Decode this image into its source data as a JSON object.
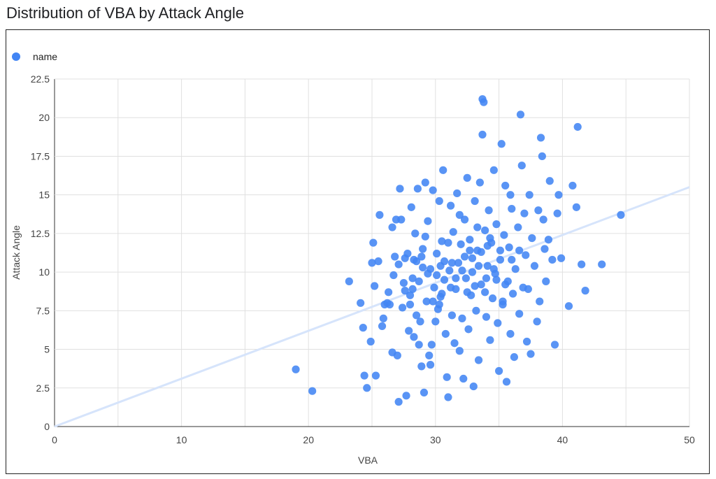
{
  "title": "Distribution of VBA by Attack Angle",
  "chart_data": {
    "type": "scatter",
    "title": "Distribution of VBA by Attack Angle",
    "xlabel": "VBA",
    "ylabel": "Attack Angle",
    "xlim": [
      0,
      50
    ],
    "ylim": [
      0,
      22.5
    ],
    "x_ticks": [
      "0",
      "10",
      "20",
      "30",
      "40",
      "50"
    ],
    "y_ticks": [
      "0",
      "2.5",
      "5",
      "7.5",
      "10",
      "12.5",
      "15",
      "17.5",
      "20",
      "22.5"
    ],
    "grid": true,
    "legend_position": "top-left",
    "series": [
      {
        "name": "name",
        "color": "#4285f4",
        "points": [
          [
            19.0,
            3.7
          ],
          [
            20.3,
            2.3
          ],
          [
            23.2,
            9.4
          ],
          [
            24.1,
            8.0
          ],
          [
            24.3,
            6.4
          ],
          [
            24.4,
            3.3
          ],
          [
            24.6,
            2.5
          ],
          [
            24.9,
            5.5
          ],
          [
            25.0,
            10.6
          ],
          [
            25.1,
            11.9
          ],
          [
            25.2,
            9.1
          ],
          [
            25.3,
            3.3
          ],
          [
            25.5,
            10.7
          ],
          [
            25.6,
            13.7
          ],
          [
            25.8,
            6.5
          ],
          [
            26.0,
            7.9
          ],
          [
            26.2,
            8.0
          ],
          [
            26.4,
            7.9
          ],
          [
            26.6,
            12.9
          ],
          [
            26.6,
            4.8
          ],
          [
            26.7,
            9.8
          ],
          [
            26.8,
            11.0
          ],
          [
            26.9,
            13.4
          ],
          [
            27.0,
            4.6
          ],
          [
            27.1,
            1.6
          ],
          [
            27.2,
            15.4
          ],
          [
            27.3,
            13.4
          ],
          [
            27.5,
            9.3
          ],
          [
            27.6,
            10.9
          ],
          [
            27.7,
            2.0
          ],
          [
            27.8,
            11.2
          ],
          [
            27.9,
            6.2
          ],
          [
            28.0,
            7.9
          ],
          [
            28.1,
            14.2
          ],
          [
            28.2,
            8.9
          ],
          [
            28.3,
            5.8
          ],
          [
            28.4,
            12.5
          ],
          [
            28.5,
            10.7
          ],
          [
            28.6,
            15.4
          ],
          [
            28.7,
            5.3
          ],
          [
            28.8,
            6.8
          ],
          [
            28.9,
            3.9
          ],
          [
            29.0,
            11.5
          ],
          [
            29.1,
            2.2
          ],
          [
            29.2,
            15.8
          ],
          [
            29.3,
            8.1
          ],
          [
            29.4,
            13.3
          ],
          [
            29.5,
            4.6
          ],
          [
            29.6,
            10.2
          ],
          [
            29.7,
            5.3
          ],
          [
            29.8,
            15.3
          ],
          [
            29.9,
            9.0
          ],
          [
            30.0,
            6.8
          ],
          [
            30.1,
            11.2
          ],
          [
            30.2,
            7.6
          ],
          [
            30.3,
            14.6
          ],
          [
            30.4,
            8.4
          ],
          [
            30.5,
            12.0
          ],
          [
            30.6,
            16.6
          ],
          [
            30.7,
            9.5
          ],
          [
            30.8,
            6.0
          ],
          [
            30.9,
            3.2
          ],
          [
            31.0,
            1.9
          ],
          [
            31.1,
            10.1
          ],
          [
            31.2,
            14.3
          ],
          [
            31.3,
            7.2
          ],
          [
            31.4,
            12.6
          ],
          [
            31.5,
            5.4
          ],
          [
            31.6,
            8.9
          ],
          [
            31.7,
            15.1
          ],
          [
            31.8,
            10.6
          ],
          [
            31.9,
            4.9
          ],
          [
            32.0,
            11.8
          ],
          [
            32.1,
            7.0
          ],
          [
            32.2,
            3.1
          ],
          [
            32.3,
            13.4
          ],
          [
            32.4,
            9.6
          ],
          [
            32.5,
            16.1
          ],
          [
            32.6,
            6.3
          ],
          [
            32.7,
            12.1
          ],
          [
            32.8,
            8.5
          ],
          [
            32.9,
            10.9
          ],
          [
            33.0,
            2.6
          ],
          [
            33.1,
            14.6
          ],
          [
            33.2,
            7.5
          ],
          [
            33.3,
            11.4
          ],
          [
            33.4,
            4.3
          ],
          [
            33.5,
            15.8
          ],
          [
            33.6,
            9.2
          ],
          [
            33.7,
            18.9
          ],
          [
            33.7,
            21.2
          ],
          [
            33.8,
            21.0
          ],
          [
            33.9,
            12.7
          ],
          [
            34.0,
            7.1
          ],
          [
            34.1,
            10.4
          ],
          [
            34.2,
            14.0
          ],
          [
            34.3,
            5.6
          ],
          [
            34.4,
            11.9
          ],
          [
            34.5,
            8.3
          ],
          [
            34.6,
            16.6
          ],
          [
            34.7,
            9.9
          ],
          [
            34.8,
            13.1
          ],
          [
            34.9,
            6.7
          ],
          [
            35.0,
            3.6
          ],
          [
            35.1,
            10.8
          ],
          [
            35.2,
            18.3
          ],
          [
            35.3,
            7.9
          ],
          [
            35.4,
            12.4
          ],
          [
            35.5,
            15.6
          ],
          [
            35.6,
            2.9
          ],
          [
            35.7,
            9.4
          ],
          [
            35.8,
            11.6
          ],
          [
            35.9,
            6.0
          ],
          [
            36.0,
            14.1
          ],
          [
            36.1,
            8.6
          ],
          [
            36.2,
            4.5
          ],
          [
            36.3,
            10.2
          ],
          [
            36.5,
            12.9
          ],
          [
            36.6,
            7.3
          ],
          [
            36.7,
            20.2
          ],
          [
            36.8,
            16.9
          ],
          [
            36.9,
            9.0
          ],
          [
            37.0,
            13.8
          ],
          [
            37.1,
            11.1
          ],
          [
            37.2,
            5.5
          ],
          [
            37.3,
            8.9
          ],
          [
            37.4,
            15.0
          ],
          [
            37.5,
            4.7
          ],
          [
            37.6,
            12.2
          ],
          [
            37.8,
            10.4
          ],
          [
            38.0,
            6.8
          ],
          [
            38.1,
            14.0
          ],
          [
            38.2,
            8.1
          ],
          [
            38.3,
            18.7
          ],
          [
            38.4,
            17.5
          ],
          [
            38.5,
            13.4
          ],
          [
            38.6,
            11.5
          ],
          [
            38.7,
            9.4
          ],
          [
            38.9,
            12.1
          ],
          [
            39.0,
            15.9
          ],
          [
            39.2,
            10.8
          ],
          [
            39.4,
            5.3
          ],
          [
            39.6,
            13.8
          ],
          [
            39.7,
            15.0
          ],
          [
            39.9,
            10.9
          ],
          [
            40.5,
            7.8
          ],
          [
            40.8,
            15.6
          ],
          [
            41.1,
            14.2
          ],
          [
            41.2,
            19.4
          ],
          [
            41.5,
            10.5
          ],
          [
            41.8,
            8.8
          ],
          [
            43.1,
            10.5
          ],
          [
            44.6,
            13.7
          ],
          [
            29.6,
            4.0
          ],
          [
            30.4,
            10.4
          ],
          [
            31.9,
            13.7
          ],
          [
            33.1,
            9.1
          ],
          [
            34.1,
            11.7
          ],
          [
            35.9,
            15.0
          ],
          [
            36.6,
            11.4
          ],
          [
            28.2,
            9.6
          ],
          [
            28.9,
            11.0
          ],
          [
            29.8,
            8.1
          ],
          [
            30.1,
            9.8
          ],
          [
            31.3,
            10.6
          ],
          [
            32.1,
            10.1
          ],
          [
            32.7,
            11.4
          ],
          [
            33.4,
            10.4
          ],
          [
            34.3,
            12.2
          ],
          [
            35.1,
            11.4
          ],
          [
            27.4,
            7.7
          ],
          [
            28.0,
            8.5
          ],
          [
            28.7,
            9.4
          ],
          [
            29.4,
            9.9
          ],
          [
            30.7,
            10.7
          ],
          [
            31.6,
            9.6
          ],
          [
            32.5,
            8.7
          ],
          [
            33.6,
            11.3
          ],
          [
            34.6,
            10.2
          ],
          [
            35.5,
            9.2
          ],
          [
            26.3,
            8.7
          ],
          [
            27.1,
            10.5
          ],
          [
            28.5,
            7.2
          ],
          [
            29.0,
            10.3
          ],
          [
            30.3,
            7.9
          ],
          [
            31.0,
            11.9
          ],
          [
            32.9,
            10.0
          ],
          [
            33.9,
            8.7
          ],
          [
            34.8,
            9.5
          ],
          [
            36.0,
            10.8
          ],
          [
            25.9,
            7.0
          ],
          [
            27.6,
            8.8
          ],
          [
            28.3,
            10.8
          ],
          [
            29.2,
            12.3
          ],
          [
            30.5,
            8.6
          ],
          [
            31.2,
            9.0
          ],
          [
            32.3,
            11.0
          ],
          [
            33.3,
            12.9
          ],
          [
            34.0,
            9.6
          ],
          [
            35.3,
            8.1
          ]
        ]
      }
    ],
    "trendline": {
      "from": [
        0,
        0
      ],
      "to": [
        50,
        15.5
      ],
      "color": "#d6e4fb"
    }
  }
}
